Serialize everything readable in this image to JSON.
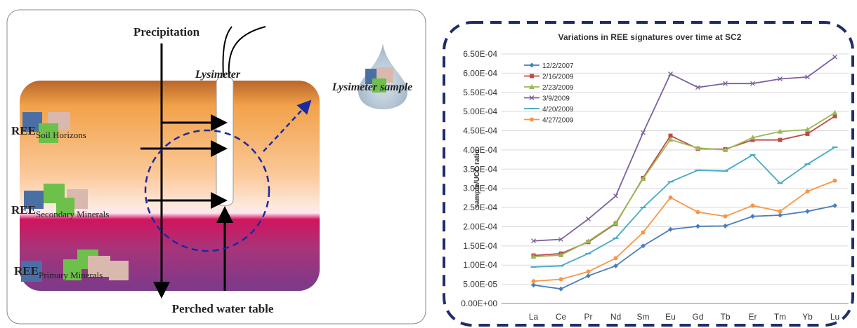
{
  "diagram": {
    "precipitation": "Precipitation",
    "lysimeter": "Lysimeter",
    "lysimeter_sample": "Lysimeter sample",
    "perched_water_table": "Perched water table",
    "ree_groups": [
      {
        "symbol": "REE",
        "subscript": "Soil Horizons"
      },
      {
        "symbol": "REE",
        "subscript": "Secondary Minerals"
      },
      {
        "symbol": "REE",
        "subscript": "Primary Minerals"
      }
    ]
  },
  "chart_data": {
    "type": "line",
    "title": "Variations in REE signatures over time at SC2",
    "y_label": "sample/UCC ratio",
    "categories": [
      "La",
      "Ce",
      "Pr",
      "Nd",
      "Sm",
      "Eu",
      "Gd",
      "Tb",
      "Er",
      "Tm",
      "Yb",
      "Lu"
    ],
    "ylim": [
      0,
      0.00065
    ],
    "yticks": [
      {
        "value": 0,
        "label": "0.00E+00"
      },
      {
        "value": 5e-05,
        "label": "5.00E-05"
      },
      {
        "value": 0.0001,
        "label": "1.00E-04"
      },
      {
        "value": 0.00015,
        "label": "1.50E-04"
      },
      {
        "value": 0.0002,
        "label": "2.00E-04"
      },
      {
        "value": 0.00025,
        "label": "2.50E-04"
      },
      {
        "value": 0.0003,
        "label": "3.00E-04"
      },
      {
        "value": 0.00035,
        "label": "3.50E-04"
      },
      {
        "value": 0.0004,
        "label": "4.00E-04"
      },
      {
        "value": 0.00045,
        "label": "4.50E-04"
      },
      {
        "value": 0.0005,
        "label": "5.00E-04"
      },
      {
        "value": 0.00055,
        "label": "5.50E-04"
      },
      {
        "value": 0.0006,
        "label": "6.00E-04"
      },
      {
        "value": 0.00065,
        "label": "6.50E-04"
      }
    ],
    "grid": true,
    "legend": "top-left",
    "series": [
      {
        "name": "12/2/2007",
        "color": "#4a7ebb",
        "marker": "diamond",
        "values": [
          4.8e-05,
          3.8e-05,
          7.2e-05,
          9.8e-05,
          0.00015,
          0.000193,
          0.000201,
          0.000202,
          0.000227,
          0.00023,
          0.00024,
          0.000255
        ]
      },
      {
        "name": "2/16/2009",
        "color": "#be4b48",
        "marker": "square",
        "values": [
          0.000125,
          0.00013,
          0.00016,
          0.000208,
          0.000327,
          0.000437,
          0.000403,
          0.000402,
          0.000426,
          0.000426,
          0.000442,
          0.000488
        ]
      },
      {
        "name": "2/23/2009",
        "color": "#98b954",
        "marker": "triangle",
        "values": [
          0.000122,
          0.000126,
          0.000162,
          0.00021,
          0.000325,
          0.000427,
          0.000405,
          0.0004,
          0.000432,
          0.000448,
          0.000453,
          0.000497
        ]
      },
      {
        "name": "3/9/2009",
        "color": "#7d60a0",
        "marker": "cross",
        "values": [
          0.000163,
          0.000167,
          0.00022,
          0.00028,
          0.000445,
          0.000598,
          0.000563,
          0.000573,
          0.000573,
          0.000585,
          0.00059,
          0.000642
        ]
      },
      {
        "name": "4/20/2009",
        "color": "#46aac5",
        "marker": "dash",
        "values": [
          9.5e-05,
          9.8e-05,
          0.00013,
          0.00017,
          0.00025,
          0.000317,
          0.000347,
          0.000345,
          0.000387,
          0.000313,
          0.000363,
          0.000407
        ]
      },
      {
        "name": "4/27/2009",
        "color": "#f79646",
        "marker": "circle",
        "values": [
          5.8e-05,
          6.3e-05,
          8.3e-05,
          0.000118,
          0.000185,
          0.000276,
          0.000238,
          0.000227,
          0.000255,
          0.00024,
          0.000292,
          0.00032
        ]
      }
    ]
  }
}
